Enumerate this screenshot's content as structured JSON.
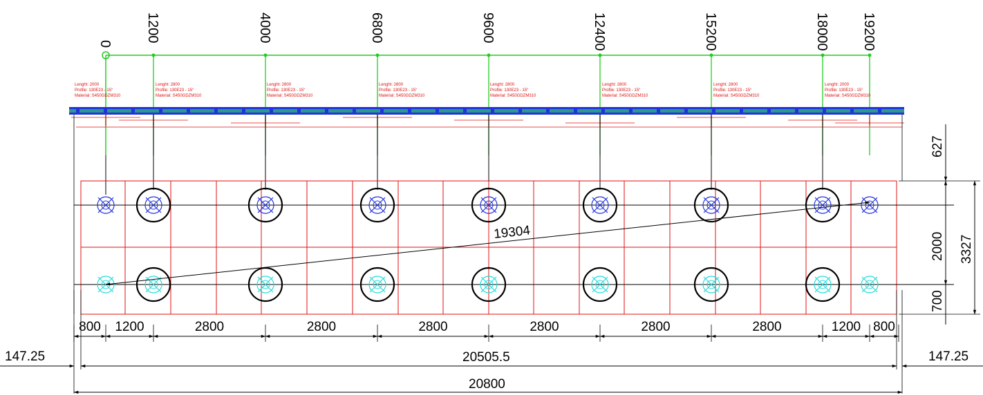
{
  "colors": {
    "red": "#e01010",
    "green": "#22cc22",
    "blue": "#2233dd",
    "cyan": "#22dddd",
    "black": "#000000",
    "purlin_teal": "#2a9a8a"
  },
  "top_axis": {
    "origin_label": "0",
    "stations": [
      "1200",
      "4000",
      "6800",
      "9600",
      "12400",
      "15200",
      "18000",
      "19200"
    ]
  },
  "purlin_notes": [
    {
      "length": "Lenght: 2000",
      "profile": "Profile: 130E23 - 15°",
      "material": "Material: S450GDZM310"
    },
    {
      "length": "Lenght: 2800",
      "profile": "Profile: 130E23 - 15°",
      "material": "Material: S450GDZM310"
    },
    {
      "length": "Lenght: 2800",
      "profile": "Profile: 130E23 - 15°",
      "material": "Material: S450GDZM310"
    },
    {
      "length": "Lenght: 2800",
      "profile": "Profile: 130E23 - 15°",
      "material": "Material: S450GDZM310"
    },
    {
      "length": "Lenght: 2800",
      "profile": "Profile: 130E23 - 15°",
      "material": "Material: S450GDZM310"
    },
    {
      "length": "Lenght: 2800",
      "profile": "Profile: 130E23 - 15°",
      "material": "Material: S450GDZM310"
    },
    {
      "length": "Lenght: 2800",
      "profile": "Profile: 130E23 - 15°",
      "material": "Material: S450GDZM310"
    },
    {
      "length": "Lenght: 2000",
      "profile": "Profile: 130E23 - 15°",
      "material": "Material: S450GDZM310"
    }
  ],
  "diagonal": "19304",
  "right_dims": {
    "top": "627",
    "middle": "2000",
    "bottom": "700",
    "total": "3327"
  },
  "bottom_spacings": [
    "800",
    "1200",
    "2800",
    "2800",
    "2800",
    "2800",
    "2800",
    "2800",
    "1200",
    "800"
  ],
  "overall": {
    "left_offset": "147.25",
    "right_offset": "147.25",
    "inner": "20505.5",
    "total": "20800"
  }
}
